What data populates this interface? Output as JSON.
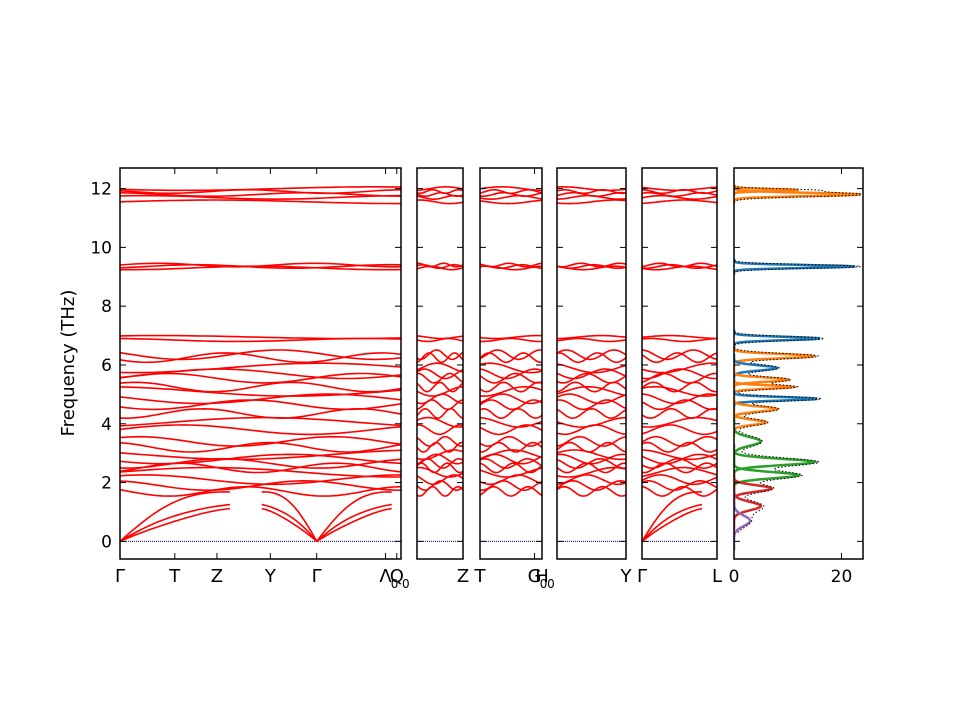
{
  "chart_data": {
    "type": "line",
    "ylabel": "Frequency (THz)",
    "ylim": [
      -0.6,
      12.7
    ],
    "y_ticks": [
      "0",
      "2",
      "4",
      "6",
      "8",
      "10",
      "12"
    ],
    "band_color": "#ff0000",
    "zero_line_color": "#00008b",
    "panels": [
      {
        "labels": [
          "Γ",
          "T",
          "Z",
          "Y",
          "Γ",
          "Λ",
          "Q"
        ],
        "label_positions": [
          0,
          0.195,
          0.345,
          0.535,
          0.7,
          0.945,
          0.985
        ],
        "subscripts": [
          "",
          "",
          "",
          "",
          "",
          "0",
          "0"
        ]
      },
      {
        "labels": [
          "Z"
        ],
        "label_positions": [
          1.0
        ],
        "subscripts": [
          ""
        ]
      },
      {
        "labels": [
          "T",
          "G",
          "H"
        ],
        "label_positions": [
          0.0,
          0.88,
          1.0
        ],
        "subscripts": [
          "",
          "0",
          "0"
        ]
      },
      {
        "labels": [
          "Y"
        ],
        "label_positions": [
          1.0
        ],
        "subscripts": [
          ""
        ]
      },
      {
        "labels": [
          "Γ",
          "L"
        ],
        "label_positions": [
          0.0,
          1.0
        ],
        "subscripts": [
          "",
          ""
        ]
      }
    ],
    "band_levels": [
      11.55,
      11.7,
      11.8,
      11.9,
      12.0,
      9.3,
      9.35,
      9.4,
      6.95,
      6.85,
      6.35,
      6.25,
      5.9,
      5.7,
      5.55,
      5.25,
      5.1,
      4.85,
      4.65,
      4.35,
      4.05,
      3.8,
      3.4,
      3.2,
      2.95,
      2.8,
      2.65,
      2.5,
      2.35,
      2.1,
      1.9,
      1.7
    ],
    "acoustic_max": [
      2.1,
      1.5,
      1.2
    ],
    "dos": {
      "xlim": [
        0,
        24
      ],
      "x_ticks": [
        "0",
        "20"
      ],
      "total_color": "#000000",
      "peaks": [
        {
          "freq": 11.8,
          "height": 23.5,
          "width": 0.08,
          "color": "#ff7f0e"
        },
        {
          "freq": 11.95,
          "height": 12,
          "width": 0.05,
          "color": "#ff7f0e"
        },
        {
          "freq": 9.35,
          "height": 22.5,
          "width": 0.07,
          "color": "#1f77b4"
        },
        {
          "freq": 6.9,
          "height": 16,
          "width": 0.08,
          "color": "#1f77b4"
        },
        {
          "freq": 6.3,
          "height": 15,
          "width": 0.1,
          "color": "#ff7f0e"
        },
        {
          "freq": 5.9,
          "height": 8,
          "width": 0.12,
          "color": "#1f77b4"
        },
        {
          "freq": 5.5,
          "height": 10,
          "width": 0.1,
          "color": "#ff7f0e"
        },
        {
          "freq": 5.25,
          "height": 11,
          "width": 0.08,
          "color": "#ff7f0e"
        },
        {
          "freq": 4.85,
          "height": 15.5,
          "width": 0.08,
          "color": "#1f77b4"
        },
        {
          "freq": 4.5,
          "height": 8,
          "width": 0.12,
          "color": "#ff7f0e"
        },
        {
          "freq": 4.05,
          "height": 6,
          "width": 0.12,
          "color": "#ff7f0e"
        },
        {
          "freq": 3.4,
          "height": 5,
          "width": 0.2,
          "color": "#2ca02c"
        },
        {
          "freq": 2.7,
          "height": 15,
          "width": 0.15,
          "color": "#2ca02c"
        },
        {
          "freq": 2.25,
          "height": 12,
          "width": 0.15,
          "color": "#2ca02c"
        },
        {
          "freq": 1.8,
          "height": 7,
          "width": 0.15,
          "color": "#d62728"
        },
        {
          "freq": 1.2,
          "height": 5,
          "width": 0.2,
          "color": "#d62728"
        },
        {
          "freq": 0.7,
          "height": 3,
          "width": 0.25,
          "color": "#9467bd"
        }
      ]
    }
  }
}
